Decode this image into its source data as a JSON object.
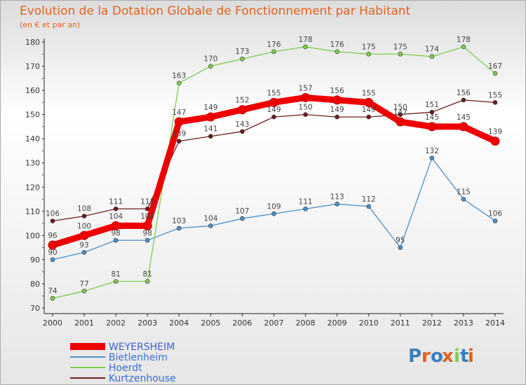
{
  "chart_data": {
    "type": "line",
    "title": "Evolution de la Dotation Globale de Fonctionnement par Habitant",
    "subtitle": "(en € et par an)",
    "xlabel": "",
    "ylabel": "",
    "ylim": [
      70,
      180
    ],
    "yticks": [
      70,
      80,
      90,
      100,
      110,
      120,
      130,
      140,
      150,
      160,
      170,
      180
    ],
    "categories": [
      "2000",
      "2001",
      "2002",
      "2003",
      "2004",
      "2005",
      "2006",
      "2007",
      "2008",
      "2009",
      "2010",
      "2011",
      "2012",
      "2013",
      "2014"
    ],
    "series": [
      {
        "name": "Bietlenheim",
        "color": "#4a90c8",
        "values": [
          90,
          93,
          98,
          98,
          103,
          104,
          107,
          109,
          111,
          113,
          112,
          95,
          132,
          115,
          106
        ]
      },
      {
        "name": "Hoerdt",
        "color": "#7ccd4a",
        "values": [
          74,
          77,
          81,
          81,
          163,
          170,
          173,
          176,
          178,
          176,
          175,
          175,
          174,
          178,
          167
        ]
      },
      {
        "name": "Kurtzenhouse",
        "color": "#6b1e1e",
        "values": [
          106,
          108,
          111,
          111,
          139,
          141,
          143,
          149,
          150,
          149,
          149,
          150,
          151,
          156,
          155
        ]
      },
      {
        "name": "WEYERSHEIM",
        "color": "#ee0000",
        "values": [
          96,
          100,
          104,
          104,
          147,
          149,
          152,
          155,
          157,
          156,
          155,
          147,
          145,
          145,
          139
        ]
      }
    ],
    "legend": [
      "WEYERSHEIM",
      "Bietlenheim",
      "Hoerdt",
      "Kurtzenhouse"
    ],
    "legend_colors": [
      "#ee0000",
      "#4a90c8",
      "#7ccd4a",
      "#6b1e1e"
    ],
    "legend_placement": "bottom-left",
    "grid": false
  },
  "logo": {
    "text": "Proxiti",
    "letters": [
      "P",
      "r",
      "o",
      "x",
      "i",
      "t",
      "i"
    ],
    "colors": [
      "#3a7fc1",
      "#e3621c",
      "#3a7fc1",
      "#e3621c",
      "#7ccd4a",
      "#3a7fc1",
      "#e3621c"
    ]
  }
}
